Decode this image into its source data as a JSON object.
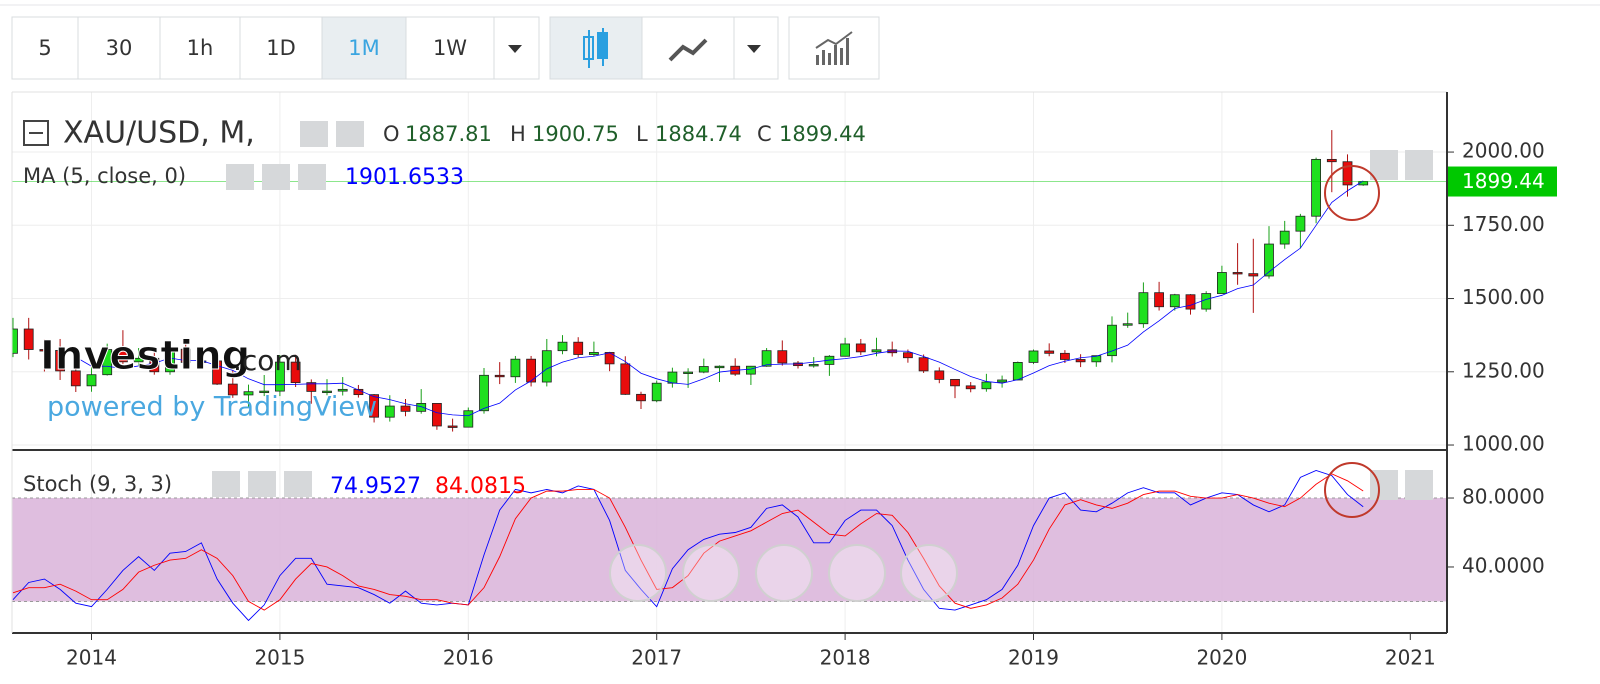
{
  "toolbar": {
    "intervals": [
      "5",
      "30",
      "1h",
      "1D",
      "1M",
      "1W"
    ],
    "active_index": 4
  },
  "watermark": {
    "brand": "Investing",
    "suffix": ".com",
    "powered": "powered by TradingView"
  },
  "x_last_label": "2021",
  "chart_data": [
    {
      "type": "candlestick",
      "title": "XAU/USD, M,",
      "ohlc_labels": [
        "O",
        "H",
        "L",
        "C"
      ],
      "up_color": "#1fe01f",
      "down_color": "#e80c0c",
      "grid": true,
      "ylim": [
        983,
        2205
      ],
      "yticks": [
        {
          "value": 1000,
          "label": "1000.00"
        },
        {
          "value": 1250,
          "label": "1250.00"
        },
        {
          "value": 1500,
          "label": "1500.00"
        },
        {
          "value": 1750,
          "label": "1750.00"
        },
        {
          "value": 2000,
          "label": "2000.00"
        }
      ],
      "categories": [
        null,
        null,
        null,
        null,
        null,
        "2014",
        null,
        null,
        null,
        null,
        null,
        null,
        null,
        null,
        null,
        null,
        null,
        "2015",
        null,
        null,
        null,
        null,
        null,
        null,
        null,
        null,
        null,
        null,
        null,
        "2016",
        null,
        null,
        null,
        null,
        null,
        null,
        null,
        null,
        null,
        null,
        null,
        "2017",
        null,
        null,
        null,
        null,
        null,
        null,
        null,
        null,
        null,
        null,
        null,
        "2018",
        null,
        null,
        null,
        null,
        null,
        null,
        null,
        null,
        null,
        null,
        null,
        "2019",
        null,
        null,
        null,
        null,
        null,
        null,
        null,
        null,
        null,
        null,
        null,
        "2020",
        null,
        null,
        null,
        null,
        null,
        null,
        null,
        null,
        null
      ],
      "open": [
        1313,
        1396,
        1326,
        1323,
        1253,
        1202,
        1240,
        1326,
        1284,
        1296,
        1250,
        1327,
        1282,
        1287,
        1208,
        1171,
        1182,
        1184,
        1283,
        1213,
        1183,
        1184,
        1190,
        1172,
        1095,
        1133,
        1115,
        1142,
        1065,
        1061,
        1117,
        1238,
        1233,
        1293,
        1215,
        1322,
        1351,
        1309,
        1316,
        1277,
        1173,
        1151,
        1211,
        1249,
        1249,
        1268,
        1269,
        1242,
        1269,
        1322,
        1280,
        1271,
        1275,
        1303,
        1345,
        1318,
        1325,
        1315,
        1298,
        1253,
        1224,
        1202,
        1192,
        1215,
        1222,
        1282,
        1321,
        1313,
        1292,
        1284,
        1305,
        1409,
        1414,
        1520,
        1472,
        1513,
        1464,
        1517,
        1589,
        1585,
        1577,
        1686,
        1730,
        1781,
        1975,
        1967,
        1887.81
      ],
      "high": [
        1434,
        1434,
        1361,
        1362,
        1267,
        1268,
        1346,
        1392,
        1331,
        1315,
        1332,
        1346,
        1324,
        1288,
        1255,
        1206,
        1239,
        1307,
        1308,
        1224,
        1225,
        1232,
        1205,
        1174,
        1170,
        1157,
        1191,
        1142,
        1090,
        1128,
        1263,
        1283,
        1304,
        1304,
        1362,
        1375,
        1368,
        1353,
        1318,
        1303,
        1182,
        1220,
        1264,
        1262,
        1295,
        1272,
        1296,
        1270,
        1331,
        1357,
        1287,
        1300,
        1307,
        1366,
        1362,
        1366,
        1353,
        1326,
        1309,
        1265,
        1215,
        1215,
        1243,
        1237,
        1285,
        1326,
        1347,
        1324,
        1310,
        1306,
        1439,
        1452,
        1555,
        1557,
        1516,
        1515,
        1525,
        1612,
        1689,
        1704,
        1747,
        1765,
        1789,
        1981,
        2075,
        1992,
        1900.75
      ],
      "low": [
        1300,
        1292,
        1251,
        1222,
        1181,
        1182,
        1237,
        1277,
        1268,
        1240,
        1240,
        1280,
        1276,
        1205,
        1161,
        1131,
        1167,
        1167,
        1198,
        1141,
        1170,
        1169,
        1162,
        1077,
        1080,
        1098,
        1107,
        1052,
        1046,
        1061,
        1107,
        1208,
        1212,
        1200,
        1200,
        1310,
        1300,
        1303,
        1252,
        1171,
        1123,
        1146,
        1196,
        1195,
        1245,
        1215,
        1236,
        1205,
        1267,
        1271,
        1261,
        1264,
        1236,
        1302,
        1307,
        1303,
        1302,
        1281,
        1246,
        1211,
        1160,
        1180,
        1182,
        1196,
        1221,
        1276,
        1303,
        1280,
        1266,
        1267,
        1282,
        1400,
        1400,
        1459,
        1459,
        1445,
        1455,
        1517,
        1547,
        1451,
        1568,
        1670,
        1671,
        1757,
        1863,
        1848,
        1884.74
      ],
      "close": [
        1396,
        1326,
        1323,
        1253,
        1202,
        1240,
        1326,
        1284,
        1296,
        1250,
        1327,
        1282,
        1287,
        1208,
        1171,
        1182,
        1184,
        1283,
        1213,
        1183,
        1184,
        1190,
        1172,
        1095,
        1133,
        1115,
        1142,
        1065,
        1061,
        1117,
        1238,
        1233,
        1293,
        1215,
        1322,
        1351,
        1309,
        1316,
        1277,
        1173,
        1151,
        1211,
        1249,
        1249,
        1268,
        1269,
        1242,
        1269,
        1322,
        1280,
        1271,
        1275,
        1303,
        1345,
        1318,
        1325,
        1315,
        1298,
        1253,
        1224,
        1202,
        1192,
        1215,
        1222,
        1282,
        1321,
        1313,
        1292,
        1284,
        1305,
        1409,
        1414,
        1520,
        1472,
        1513,
        1464,
        1517,
        1589,
        1585,
        1577,
        1686,
        1730,
        1781,
        1975,
        1967,
        1887.81,
        1899.44
      ],
      "last_price_color": "#00c800",
      "ma": {
        "name": "MA (5, close, 0)",
        "color": "#0000ff",
        "values": [
          null,
          null,
          null,
          null,
          1300,
          1269,
          1269,
          1261,
          1270,
          1279,
          1297,
          1288,
          1288,
          1271,
          1255,
          1226,
          1206,
          1206,
          1207,
          1209,
          1209,
          1211,
          1188,
          1165,
          1155,
          1141,
          1131,
          1110,
          1103,
          1100,
          1125,
          1143,
          1188,
          1219,
          1260,
          1283,
          1298,
          1303,
          1315,
          1285,
          1245,
          1226,
          1212,
          1207,
          1226,
          1249,
          1255,
          1259,
          1274,
          1276,
          1277,
          1283,
          1290,
          1295,
          1302,
          1313,
          1321,
          1320,
          1302,
          1283,
          1258,
          1234,
          1217,
          1211,
          1223,
          1246,
          1271,
          1286,
          1298,
          1303,
          1321,
          1341,
          1386,
          1424,
          1466,
          1477,
          1497,
          1511,
          1534,
          1546,
          1591,
          1633,
          1672,
          1750,
          1828,
          1868,
          1901.6533
        ]
      }
    },
    {
      "type": "line",
      "title": "Stoch (9, 3, 3)",
      "ylim": [
        1.7,
        106.7
      ],
      "yticks": [
        {
          "value": 40,
          "label": "40.0000"
        },
        {
          "value": 80,
          "label": "80.0000"
        }
      ],
      "band": [
        20,
        80
      ],
      "band_color": "#d9b3d9",
      "series": [
        {
          "color": "#0000ff",
          "values": [
            21,
            31,
            33,
            27,
            19,
            17,
            27,
            38,
            46,
            38,
            48,
            49,
            54,
            33,
            19,
            9,
            18,
            35,
            45,
            45,
            30,
            29,
            28,
            24,
            19,
            26,
            19,
            18,
            19,
            18,
            47,
            73,
            85,
            83,
            85,
            83,
            87,
            85,
            67,
            38,
            27,
            17,
            39,
            50,
            56,
            59,
            60,
            63,
            74,
            76,
            69,
            54,
            54,
            67,
            73,
            73,
            64,
            44,
            27,
            16,
            15,
            18,
            21,
            27,
            41,
            64,
            80,
            83,
            73,
            72,
            77,
            83,
            86,
            83,
            83,
            76,
            80,
            83,
            82,
            76,
            72,
            76,
            92,
            96,
            93,
            82,
            74.9527
          ]
        },
        {
          "color": "#ff0000",
          "values": [
            25,
            28,
            28,
            30,
            26,
            21,
            21,
            27,
            37,
            41,
            44,
            45,
            50,
            45,
            35,
            20,
            15,
            21,
            33,
            42,
            40,
            35,
            29,
            27,
            24,
            23,
            21,
            21,
            19,
            18,
            28,
            46,
            68,
            80,
            84,
            84,
            85,
            85,
            80,
            63,
            44,
            27,
            28,
            35,
            48,
            55,
            58,
            61,
            66,
            71,
            73,
            66,
            59,
            58,
            65,
            71,
            70,
            60,
            45,
            29,
            19,
            16,
            18,
            22,
            30,
            44,
            62,
            76,
            79,
            76,
            74,
            77,
            82,
            84,
            84,
            81,
            80,
            80,
            82,
            80,
            77,
            75,
            80,
            88,
            94,
            90,
            84.0815
          ]
        }
      ]
    }
  ]
}
